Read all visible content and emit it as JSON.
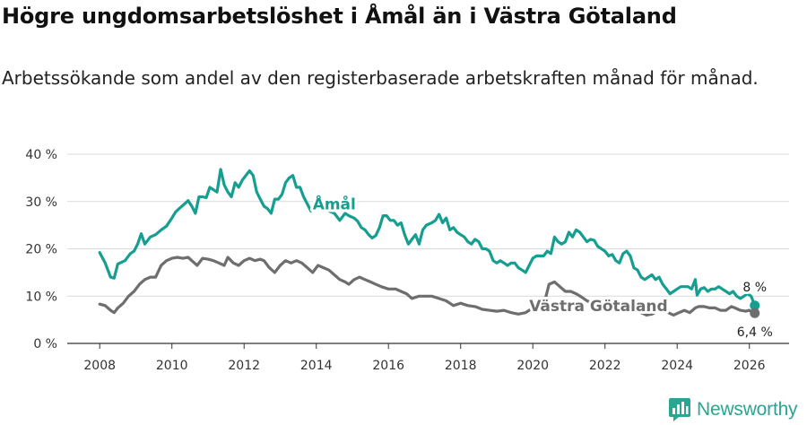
{
  "title": "Högre ungdomsarbetslöshet i Åmål än i Västra Götaland",
  "subtitle": "Arbetssökande som andel av den registerbaserade arbetskraften månad för månad.",
  "brand": "Newsworthy",
  "colors": {
    "amal": "#169e91",
    "vg": "#6e6e6e",
    "axis": "#333333",
    "grid": "#d9d9d9"
  },
  "chart_data": {
    "type": "line",
    "xlim": [
      2007.1,
      2027.1
    ],
    "ylim": [
      0,
      40
    ],
    "x_ticks": [
      2008,
      2010,
      2012,
      2014,
      2016,
      2018,
      2020,
      2022,
      2024,
      2026
    ],
    "x_tick_labels": [
      "2008",
      "2010",
      "2012",
      "2014",
      "2016",
      "2018",
      "2020",
      "2022",
      "2024",
      "2026"
    ],
    "y_ticks": [
      0,
      10,
      20,
      30,
      40
    ],
    "y_tick_labels": [
      "0 %",
      "10 %",
      "20 %",
      "30 %",
      "40 %"
    ],
    "series": [
      {
        "name": "Åmål",
        "label": "Åmål",
        "end_label": "8 %",
        "color_key": "amal",
        "points": [
          [
            2008.0,
            19.2
          ],
          [
            2008.15,
            17.0
          ],
          [
            2008.3,
            14.0
          ],
          [
            2008.4,
            13.8
          ],
          [
            2008.5,
            16.8
          ],
          [
            2008.7,
            17.5
          ],
          [
            2008.85,
            19.0
          ],
          [
            2008.95,
            19.5
          ],
          [
            2009.05,
            21.0
          ],
          [
            2009.15,
            23.2
          ],
          [
            2009.25,
            21.0
          ],
          [
            2009.4,
            22.5
          ],
          [
            2009.55,
            23.0
          ],
          [
            2009.7,
            24.0
          ],
          [
            2009.85,
            24.8
          ],
          [
            2010.0,
            26.5
          ],
          [
            2010.1,
            27.8
          ],
          [
            2010.2,
            28.5
          ],
          [
            2010.35,
            29.5
          ],
          [
            2010.45,
            30.2
          ],
          [
            2010.55,
            29.0
          ],
          [
            2010.65,
            27.5
          ],
          [
            2010.75,
            31.0
          ],
          [
            2010.85,
            31.0
          ],
          [
            2010.95,
            30.8
          ],
          [
            2011.05,
            33.0
          ],
          [
            2011.15,
            32.5
          ],
          [
            2011.25,
            32.0
          ],
          [
            2011.35,
            36.8
          ],
          [
            2011.45,
            33.5
          ],
          [
            2011.55,
            32.0
          ],
          [
            2011.65,
            31.0
          ],
          [
            2011.75,
            34.0
          ],
          [
            2011.85,
            33.0
          ],
          [
            2011.95,
            34.5
          ],
          [
            2012.05,
            35.5
          ],
          [
            2012.15,
            36.5
          ],
          [
            2012.25,
            35.5
          ],
          [
            2012.35,
            32.0
          ],
          [
            2012.45,
            30.5
          ],
          [
            2012.55,
            29.0
          ],
          [
            2012.65,
            28.5
          ],
          [
            2012.75,
            27.5
          ],
          [
            2012.85,
            30.5
          ],
          [
            2012.95,
            30.5
          ],
          [
            2013.05,
            31.5
          ],
          [
            2013.15,
            34.0
          ],
          [
            2013.25,
            35.0
          ],
          [
            2013.35,
            35.5
          ],
          [
            2013.45,
            33.0
          ],
          [
            2013.55,
            33.0
          ],
          [
            2013.65,
            31.0
          ],
          [
            2013.75,
            29.5
          ],
          [
            2013.85,
            28.0
          ],
          [
            2013.95,
            28.5
          ],
          [
            2014.15,
            30.5
          ],
          [
            2014.25,
            29.5
          ],
          [
            2014.35,
            28.0
          ],
          [
            2014.5,
            27.5
          ],
          [
            2014.65,
            26.0
          ],
          [
            2014.8,
            27.5
          ],
          [
            2014.9,
            27.0
          ],
          [
            2015.05,
            26.5
          ],
          [
            2015.15,
            25.8
          ],
          [
            2015.25,
            24.5
          ],
          [
            2015.35,
            24.0
          ],
          [
            2015.45,
            23.0
          ],
          [
            2015.55,
            22.3
          ],
          [
            2015.65,
            22.8
          ],
          [
            2015.75,
            24.5
          ],
          [
            2015.85,
            27.0
          ],
          [
            2015.95,
            27.0
          ],
          [
            2016.05,
            26.0
          ],
          [
            2016.15,
            26.0
          ],
          [
            2016.25,
            25.0
          ],
          [
            2016.35,
            25.5
          ],
          [
            2016.45,
            23.0
          ],
          [
            2016.55,
            21.0
          ],
          [
            2016.65,
            22.0
          ],
          [
            2016.75,
            23.0
          ],
          [
            2016.85,
            21.0
          ],
          [
            2016.95,
            24.0
          ],
          [
            2017.05,
            25.0
          ],
          [
            2017.2,
            25.5
          ],
          [
            2017.3,
            26.0
          ],
          [
            2017.4,
            27.3
          ],
          [
            2017.5,
            25.5
          ],
          [
            2017.6,
            26.5
          ],
          [
            2017.7,
            24.0
          ],
          [
            2017.8,
            24.5
          ],
          [
            2017.9,
            23.5
          ],
          [
            2018.0,
            23.0
          ],
          [
            2018.1,
            22.5
          ],
          [
            2018.2,
            21.5
          ],
          [
            2018.3,
            21.0
          ],
          [
            2018.4,
            22.0
          ],
          [
            2018.5,
            21.5
          ],
          [
            2018.6,
            20.0
          ],
          [
            2018.7,
            20.0
          ],
          [
            2018.8,
            19.5
          ],
          [
            2018.9,
            17.5
          ],
          [
            2019.0,
            17.0
          ],
          [
            2019.1,
            17.5
          ],
          [
            2019.2,
            17.0
          ],
          [
            2019.3,
            16.5
          ],
          [
            2019.4,
            17.0
          ],
          [
            2019.5,
            17.0
          ],
          [
            2019.6,
            16.0
          ],
          [
            2019.7,
            15.5
          ],
          [
            2019.8,
            15.0
          ],
          [
            2019.9,
            16.5
          ],
          [
            2020.0,
            18.0
          ],
          [
            2020.1,
            18.5
          ],
          [
            2020.2,
            18.5
          ],
          [
            2020.3,
            18.5
          ],
          [
            2020.4,
            19.5
          ],
          [
            2020.5,
            19.0
          ],
          [
            2020.6,
            22.5
          ],
          [
            2020.7,
            21.5
          ],
          [
            2020.8,
            21.0
          ],
          [
            2020.9,
            21.5
          ],
          [
            2021.0,
            23.5
          ],
          [
            2021.1,
            22.5
          ],
          [
            2021.2,
            24.0
          ],
          [
            2021.3,
            23.5
          ],
          [
            2021.4,
            22.5
          ],
          [
            2021.5,
            21.5
          ],
          [
            2021.6,
            22.0
          ],
          [
            2021.7,
            21.8
          ],
          [
            2021.8,
            20.5
          ],
          [
            2021.9,
            20.0
          ],
          [
            2022.0,
            19.5
          ],
          [
            2022.1,
            18.5
          ],
          [
            2022.2,
            18.8
          ],
          [
            2022.3,
            17.5
          ],
          [
            2022.4,
            17.0
          ],
          [
            2022.5,
            19.0
          ],
          [
            2022.6,
            19.5
          ],
          [
            2022.7,
            18.5
          ],
          [
            2022.8,
            16.0
          ],
          [
            2022.9,
            15.5
          ],
          [
            2023.0,
            14.0
          ],
          [
            2023.1,
            13.5
          ],
          [
            2023.2,
            14.0
          ],
          [
            2023.3,
            14.5
          ],
          [
            2023.4,
            13.5
          ],
          [
            2023.5,
            14.0
          ],
          [
            2023.6,
            12.5
          ],
          [
            2023.7,
            11.5
          ],
          [
            2023.8,
            10.5
          ],
          [
            2023.9,
            11.0
          ],
          [
            2024.0,
            11.5
          ],
          [
            2024.1,
            12.0
          ],
          [
            2024.2,
            12.0
          ],
          [
            2024.3,
            12.0
          ],
          [
            2024.4,
            11.5
          ],
          [
            2024.5,
            13.5
          ],
          [
            2024.55,
            10.2
          ],
          [
            2024.65,
            11.5
          ],
          [
            2024.75,
            11.8
          ],
          [
            2024.85,
            11.0
          ],
          [
            2024.95,
            11.5
          ],
          [
            2025.05,
            11.5
          ],
          [
            2025.15,
            12.0
          ],
          [
            2025.25,
            11.5
          ],
          [
            2025.35,
            11.0
          ],
          [
            2025.45,
            10.5
          ],
          [
            2025.55,
            11.0
          ],
          [
            2025.65,
            10.0
          ],
          [
            2025.75,
            9.5
          ],
          [
            2025.85,
            10.0
          ],
          [
            2025.95,
            10.5
          ],
          [
            2026.05,
            10.0
          ],
          [
            2026.15,
            8.0
          ]
        ]
      },
      {
        "name": "Västra Götaland",
        "label": "Västra Götaland",
        "end_label": "6,4 %",
        "color_key": "vg",
        "points": [
          [
            2008.0,
            8.3
          ],
          [
            2008.15,
            8.0
          ],
          [
            2008.3,
            7.0
          ],
          [
            2008.4,
            6.5
          ],
          [
            2008.5,
            7.5
          ],
          [
            2008.65,
            8.5
          ],
          [
            2008.8,
            10.0
          ],
          [
            2008.95,
            11.0
          ],
          [
            2009.1,
            12.5
          ],
          [
            2009.25,
            13.5
          ],
          [
            2009.4,
            14.0
          ],
          [
            2009.55,
            14.0
          ],
          [
            2009.7,
            16.5
          ],
          [
            2009.85,
            17.5
          ],
          [
            2010.0,
            18.0
          ],
          [
            2010.15,
            18.2
          ],
          [
            2010.3,
            18.0
          ],
          [
            2010.45,
            18.2
          ],
          [
            2010.55,
            17.5
          ],
          [
            2010.7,
            16.5
          ],
          [
            2010.85,
            18.0
          ],
          [
            2011.0,
            17.8
          ],
          [
            2011.15,
            17.5
          ],
          [
            2011.3,
            17.0
          ],
          [
            2011.45,
            16.5
          ],
          [
            2011.55,
            18.2
          ],
          [
            2011.7,
            17.0
          ],
          [
            2011.85,
            16.5
          ],
          [
            2012.0,
            17.5
          ],
          [
            2012.15,
            18.0
          ],
          [
            2012.3,
            17.5
          ],
          [
            2012.45,
            17.8
          ],
          [
            2012.55,
            17.5
          ],
          [
            2012.7,
            16.0
          ],
          [
            2012.85,
            15.0
          ],
          [
            2013.0,
            16.5
          ],
          [
            2013.15,
            17.5
          ],
          [
            2013.3,
            17.0
          ],
          [
            2013.45,
            17.5
          ],
          [
            2013.6,
            17.0
          ],
          [
            2013.75,
            16.0
          ],
          [
            2013.9,
            15.0
          ],
          [
            2014.05,
            16.5
          ],
          [
            2014.2,
            16.0
          ],
          [
            2014.35,
            15.5
          ],
          [
            2014.5,
            14.5
          ],
          [
            2014.65,
            13.5
          ],
          [
            2014.8,
            13.0
          ],
          [
            2014.9,
            12.5
          ],
          [
            2015.05,
            13.5
          ],
          [
            2015.2,
            14.0
          ],
          [
            2015.35,
            13.5
          ],
          [
            2015.5,
            13.0
          ],
          [
            2015.65,
            12.5
          ],
          [
            2015.8,
            12.0
          ],
          [
            2016.0,
            11.5
          ],
          [
            2016.2,
            11.5
          ],
          [
            2016.35,
            11.0
          ],
          [
            2016.5,
            10.5
          ],
          [
            2016.65,
            9.5
          ],
          [
            2016.85,
            10.0
          ],
          [
            2017.0,
            10.0
          ],
          [
            2017.2,
            10.0
          ],
          [
            2017.4,
            9.5
          ],
          [
            2017.6,
            9.0
          ],
          [
            2017.8,
            8.0
          ],
          [
            2018.0,
            8.5
          ],
          [
            2018.2,
            8.0
          ],
          [
            2018.4,
            7.8
          ],
          [
            2018.6,
            7.2
          ],
          [
            2018.8,
            7.0
          ],
          [
            2019.0,
            6.8
          ],
          [
            2019.2,
            7.0
          ],
          [
            2019.4,
            6.5
          ],
          [
            2019.6,
            6.2
          ],
          [
            2019.8,
            6.5
          ],
          [
            2020.0,
            7.5
          ],
          [
            2020.15,
            8.5
          ],
          [
            2020.25,
            9.0
          ],
          [
            2020.35,
            9.5
          ],
          [
            2020.45,
            12.5
          ],
          [
            2020.6,
            13.0
          ],
          [
            2020.75,
            12.0
          ],
          [
            2020.9,
            11.0
          ],
          [
            2021.05,
            11.0
          ],
          [
            2021.2,
            10.5
          ],
          [
            2021.35,
            9.8
          ],
          [
            2021.5,
            9.0
          ],
          [
            2021.65,
            8.5
          ],
          [
            2021.8,
            8.0
          ],
          [
            2021.95,
            7.8
          ],
          [
            2022.1,
            7.3
          ],
          [
            2022.25,
            6.8
          ],
          [
            2022.4,
            7.0
          ],
          [
            2022.55,
            7.2
          ],
          [
            2022.7,
            7.0
          ],
          [
            2022.85,
            6.8
          ],
          [
            2023.0,
            6.5
          ],
          [
            2023.15,
            6.0
          ],
          [
            2023.3,
            6.2
          ],
          [
            2023.45,
            6.8
          ],
          [
            2023.6,
            7.0
          ],
          [
            2023.75,
            6.5
          ],
          [
            2023.9,
            6.0
          ],
          [
            2024.05,
            6.5
          ],
          [
            2024.2,
            7.0
          ],
          [
            2024.35,
            6.5
          ],
          [
            2024.5,
            7.5
          ],
          [
            2024.6,
            7.8
          ],
          [
            2024.75,
            7.8
          ],
          [
            2024.9,
            7.5
          ],
          [
            2025.05,
            7.5
          ],
          [
            2025.2,
            7.0
          ],
          [
            2025.35,
            7.0
          ],
          [
            2025.5,
            7.8
          ],
          [
            2025.6,
            7.5
          ],
          [
            2025.75,
            7.0
          ],
          [
            2025.9,
            6.8
          ],
          [
            2026.0,
            7.0
          ],
          [
            2026.15,
            6.4
          ]
        ]
      }
    ]
  }
}
